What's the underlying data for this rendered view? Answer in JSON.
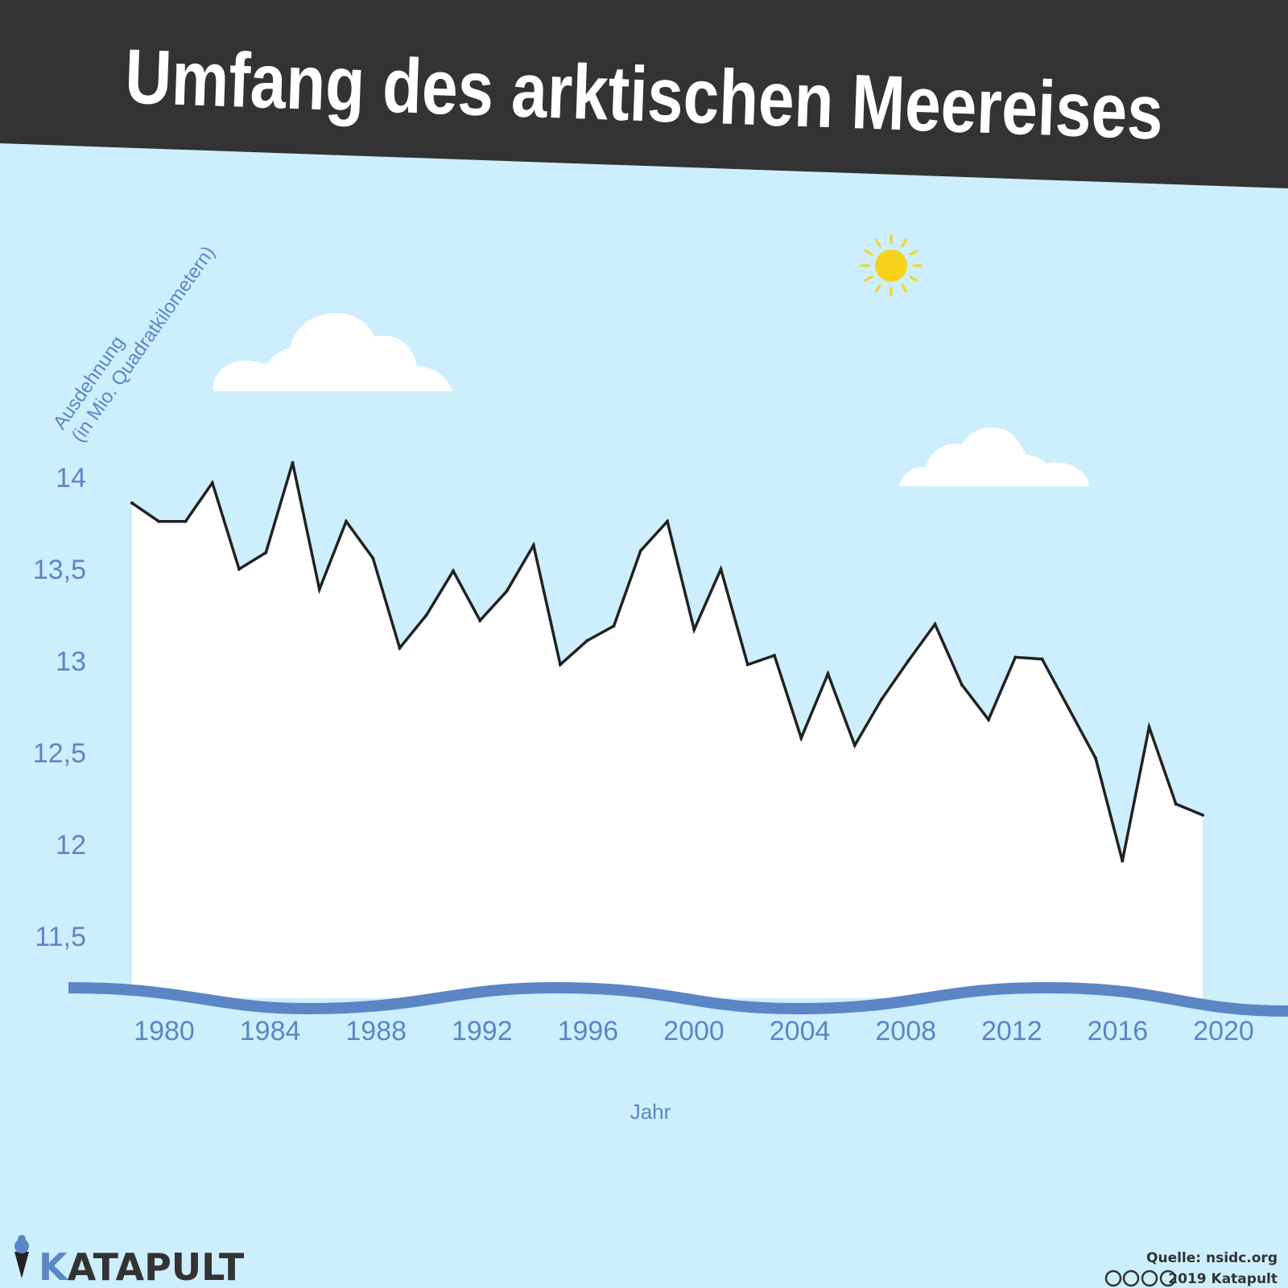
{
  "title": "Umfang des arktischen Meereises",
  "colors": {
    "background": "#cdeefc",
    "header": "#333333",
    "axis_text": "#5b86c5",
    "line": "#222222",
    "area": "#ffffff",
    "sun": "#f7d21c",
    "wave": "#5b86c5"
  },
  "chart_data": {
    "type": "area",
    "title": "Umfang des arktischen Meereises",
    "xlabel": "Jahr",
    "ylabel": "Ausdehnung\n(in Mio. Quadratkilometern)",
    "ylabel_lines": [
      "Ausdehnung",
      "(in Mio. Quadratkilometern)"
    ],
    "xlim": [
      1979,
      2020
    ],
    "ylim": [
      11.5,
      14
    ],
    "x_ticks": [
      "1980",
      "1984",
      "1988",
      "1992",
      "1996",
      "2000",
      "2004",
      "2008",
      "2012",
      "2016",
      "2020"
    ],
    "y_ticks": [
      "14",
      "13,5",
      "13",
      "12,5",
      "12",
      "11,5"
    ],
    "grid": false,
    "x": [
      1979,
      1980,
      1981,
      1982,
      1983,
      1984,
      1985,
      1986,
      1987,
      1988,
      1989,
      1990,
      1991,
      1992,
      1993,
      1994,
      1995,
      1996,
      1997,
      1998,
      1999,
      2000,
      2001,
      2002,
      2003,
      2004,
      2005,
      2006,
      2007,
      2008,
      2009,
      2010,
      2011,
      2012,
      2013,
      2014,
      2015,
      2016,
      2017,
      2018,
      2019
    ],
    "values": [
      13.86,
      13.76,
      13.76,
      13.97,
      13.5,
      13.59,
      14.08,
      13.39,
      13.76,
      13.56,
      13.07,
      13.25,
      13.49,
      13.22,
      13.38,
      13.63,
      12.98,
      13.11,
      13.19,
      13.6,
      13.76,
      13.17,
      13.5,
      12.98,
      13.03,
      12.58,
      12.93,
      12.54,
      12.79,
      13.0,
      13.2,
      12.87,
      12.68,
      13.02,
      13.01,
      12.74,
      12.47,
      11.91,
      12.64,
      12.22,
      12.16
    ]
  },
  "footer": {
    "brand": "KATAPULT",
    "brand_first": "K",
    "brand_rest": "ATAPULT",
    "source": "Quelle: nsidc.org",
    "copyright": "2019 Katapult",
    "license_icons": [
      "cc-icon",
      "by-icon",
      "nc-icon",
      "nd-icon"
    ]
  }
}
